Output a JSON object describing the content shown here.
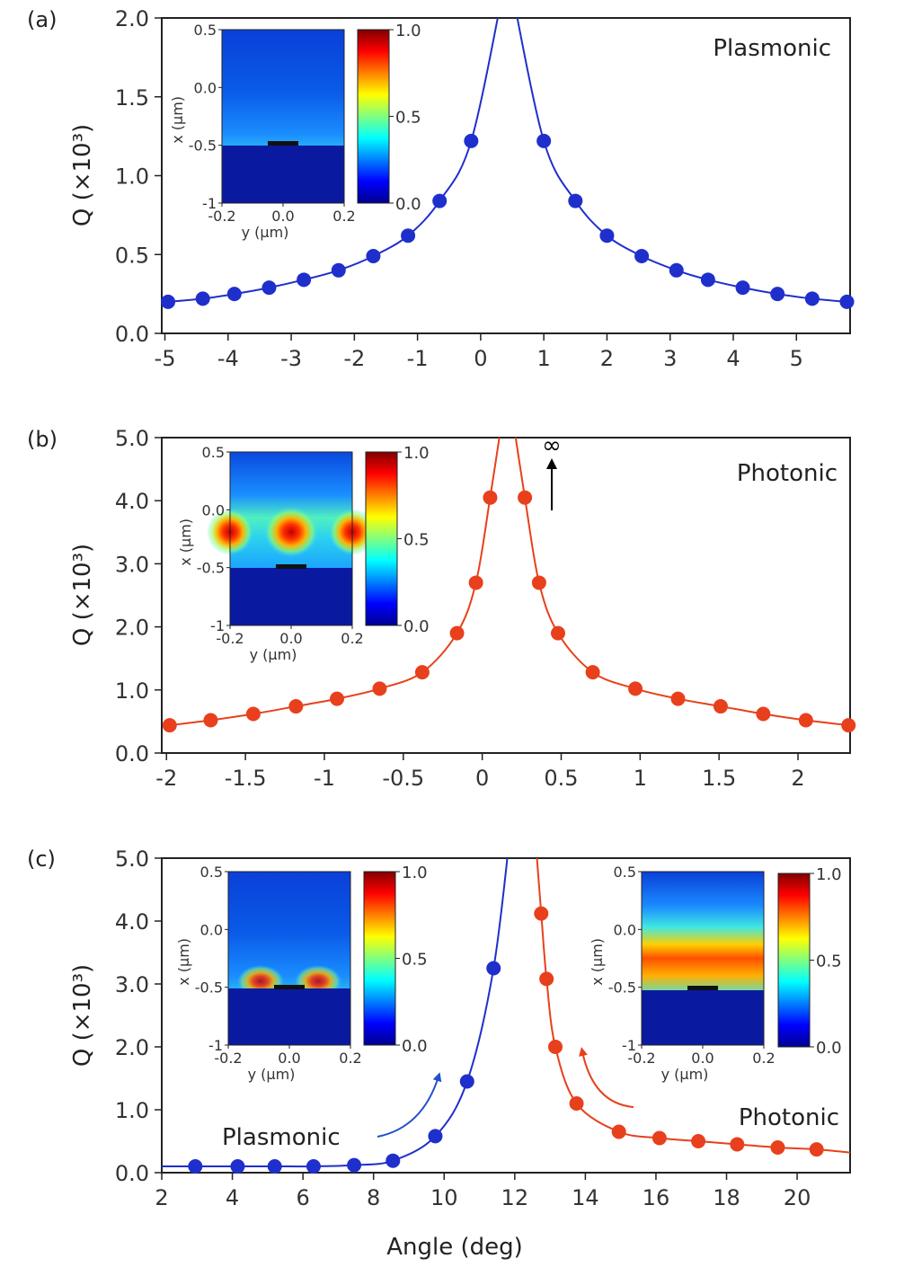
{
  "chart_data": [
    {
      "panel_label": "(a)",
      "type": "scatter",
      "xlabel": "",
      "ylabel": "Q (×10³)",
      "xlim": [
        -5.05,
        5.85
      ],
      "ylim": [
        0,
        2.0
      ],
      "xticks": [
        "-5",
        "-4",
        "-3",
        "-2",
        "-1",
        "0",
        "1",
        "2",
        "3",
        "4",
        "5"
      ],
      "yticks": [
        "0.0",
        "0.5",
        "1.0",
        "1.5",
        "2.0"
      ],
      "annotation": "Plasmonic",
      "series": [
        {
          "color": "#1f2fcc",
          "x": [
            -4.95,
            -4.4,
            -3.9,
            -3.35,
            -2.8,
            -2.25,
            -1.7,
            -1.15,
            -0.65,
            -0.15,
            1.0,
            1.5,
            2.0,
            2.55,
            3.1,
            3.6,
            4.15,
            4.7,
            5.25,
            5.8
          ],
          "y": [
            0.2,
            0.22,
            0.25,
            0.29,
            0.34,
            0.4,
            0.49,
            0.62,
            0.84,
            1.22,
            1.22,
            0.84,
            0.62,
            0.49,
            0.4,
            0.34,
            0.29,
            0.25,
            0.22,
            0.2
          ]
        }
      ],
      "inset": {
        "xlabel": "y (μm)",
        "ylabel": "x (μm)",
        "xticks": [
          "-0.2",
          "0.0",
          "0.2"
        ],
        "yticks": [
          "0.5",
          "0.0",
          "-0.5",
          "-1"
        ],
        "colorbar_ticks": [
          "1.0",
          "0.5",
          "0.0"
        ],
        "field": "plasmonic"
      }
    },
    {
      "panel_label": "(b)",
      "type": "scatter",
      "xlabel": "",
      "ylabel": "Q (×10³)",
      "xlim": [
        -2.03,
        2.33
      ],
      "ylim": [
        0,
        5.0
      ],
      "xticks": [
        "-2",
        "-1.5",
        "-1",
        "-0.5",
        "0",
        "0.5",
        "1",
        "1.5",
        "2"
      ],
      "yticks": [
        "0.0",
        "1.0",
        "2.0",
        "3.0",
        "4.0",
        "5.0"
      ],
      "annotation": "Photonic",
      "arrow_label": "∞",
      "series": [
        {
          "color": "#e8401c",
          "x": [
            -1.98,
            -1.72,
            -1.45,
            -1.18,
            -0.92,
            -0.65,
            -0.38,
            -0.16,
            -0.04,
            0.05,
            0.27,
            0.36,
            0.48,
            0.7,
            0.97,
            1.24,
            1.51,
            1.78,
            2.05,
            2.32
          ],
          "y": [
            0.44,
            0.52,
            0.62,
            0.74,
            0.86,
            1.02,
            1.28,
            1.9,
            2.7,
            4.05,
            4.05,
            2.7,
            1.9,
            1.28,
            1.02,
            0.86,
            0.74,
            0.62,
            0.52,
            0.44
          ]
        }
      ],
      "inset": {
        "xlabel": "y (μm)",
        "ylabel": "x (μm)",
        "xticks": [
          "-0.2",
          "0.0",
          "0.2"
        ],
        "yticks": [
          "0.5",
          "0.0",
          "-0.5",
          "-1"
        ],
        "colorbar_ticks": [
          "1.0",
          "0.5",
          "0.0"
        ],
        "field": "photonic"
      }
    },
    {
      "panel_label": "(c)",
      "type": "scatter",
      "xlabel": "Angle  (deg)",
      "ylabel": "Q (×10³)",
      "xlim": [
        2,
        21.5
      ],
      "ylim": [
        0,
        5.0
      ],
      "xticks": [
        "2",
        "4",
        "6",
        "8",
        "10",
        "12",
        "14",
        "16",
        "18",
        "20"
      ],
      "yticks": [
        "0.0",
        "1.0",
        "2.0",
        "3.0",
        "4.0",
        "5.0"
      ],
      "annotations": [
        "Plasmonic",
        "Photonic"
      ],
      "series": [
        {
          "color": "#1f2fcc",
          "x": [
            2.95,
            4.15,
            5.2,
            6.3,
            7.45,
            8.55,
            9.75,
            10.65,
            11.4
          ],
          "y": [
            0.1,
            0.1,
            0.1,
            0.1,
            0.12,
            0.19,
            0.58,
            1.45,
            3.25
          ]
        },
        {
          "color": "#e8401c",
          "x": [
            12.75,
            12.9,
            13.15,
            13.75,
            14.95,
            16.1,
            17.2,
            18.3,
            19.45,
            20.55
          ],
          "y": [
            4.12,
            3.08,
            2.0,
            1.1,
            0.65,
            0.55,
            0.5,
            0.45,
            0.4,
            0.37
          ]
        }
      ],
      "insets": [
        {
          "xlabel": "y (μm)",
          "ylabel": "x (μm)",
          "xticks": [
            "-0.2",
            "0.0",
            "0.2"
          ],
          "yticks": [
            "0.5",
            "0.0",
            "-0.5",
            "-1"
          ],
          "colorbar_ticks": [
            "1.0",
            "0.5",
            "0.0"
          ],
          "field": "plasmonic"
        },
        {
          "xlabel": "y (μm)",
          "ylabel": "x (μm)",
          "xticks": [
            "-0.2",
            "0.0",
            "0.2"
          ],
          "yticks": [
            "0.5",
            "0.0",
            "-0.5",
            "-1"
          ],
          "colorbar_ticks": [
            "1.0",
            "0.5",
            "0.0"
          ],
          "field": "photonic_mixed"
        }
      ]
    }
  ]
}
